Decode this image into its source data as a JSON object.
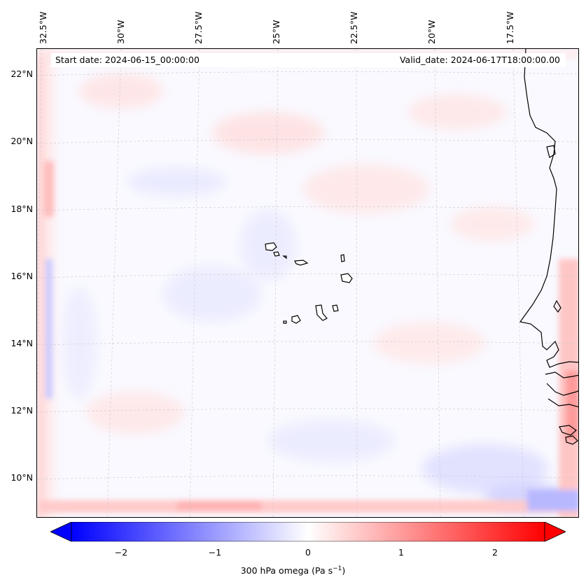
{
  "map": {
    "start_date": "Start date: 2024-06-15_00:00:00",
    "valid_date": "Valid_date: 2024-06-17T18:00:00.00",
    "lon_labels": [
      "32.5°W",
      "30°W",
      "27.5°W",
      "25°W",
      "22.5°W",
      "20°W",
      "17.5°W"
    ],
    "lat_labels": [
      "22°N",
      "20°N",
      "18°N",
      "16°N",
      "14°N",
      "12°N",
      "10°N"
    ],
    "field": "300 hPa omega",
    "colormap": [
      "#0000ff",
      "#ffffff",
      "#ff0000"
    ]
  },
  "colorbar": {
    "label_main": "300 hPa omega (Pa s",
    "label_exp": "−1",
    "label_close": ")",
    "ticks": [
      "−2",
      "−1",
      "0",
      "1",
      "2"
    ],
    "range": [
      -2.75,
      2.75
    ]
  }
}
